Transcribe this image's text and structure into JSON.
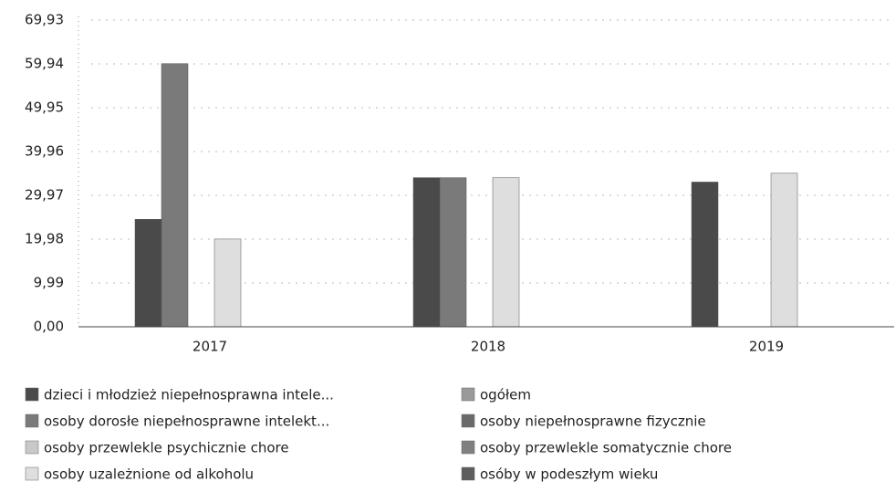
{
  "chart_data": {
    "type": "bar",
    "categories": [
      "2017",
      "2018",
      "2019"
    ],
    "series": [
      {
        "name": "dzieci i młodzież niepełnosprawna intele...",
        "color": "#4a4a4a",
        "values": [
          24.5,
          34,
          33
        ]
      },
      {
        "name": "osoby dorosłe niepełnosprawne intelekt...",
        "color": "#7a7a7a",
        "values": [
          60,
          34,
          null
        ]
      },
      {
        "name": "osoby przewlekle psychicznie chore",
        "color": "#c8c8c8",
        "values": [
          null,
          null,
          null
        ]
      },
      {
        "name": "osoby uzależnione od alkoholu",
        "color": "#dedede",
        "values": [
          20,
          34,
          35
        ]
      },
      {
        "name": "ogółem",
        "color": "#9a9a9a",
        "values": [
          null,
          null,
          null
        ]
      },
      {
        "name": "osoby niepełnosprawne fizycznie",
        "color": "#6a6a6a",
        "values": [
          null,
          null,
          null
        ]
      },
      {
        "name": "osoby przewlekle somatycznie chore",
        "color": "#808080",
        "values": [
          null,
          null,
          null
        ]
      },
      {
        "name": "osóby w podeszłym wieku",
        "color": "#5e5e5e",
        "values": [
          null,
          null,
          null
        ]
      }
    ],
    "ylim": [
      0,
      69.93
    ],
    "yticks": [
      {
        "value": 0,
        "label": "0,00"
      },
      {
        "value": 9.99,
        "label": "9,99"
      },
      {
        "value": 19.98,
        "label": "19,98"
      },
      {
        "value": 29.97,
        "label": "29,97"
      },
      {
        "value": 39.96,
        "label": "39,96"
      },
      {
        "value": 49.95,
        "label": "49,95"
      },
      {
        "value": 59.94,
        "label": "59,94"
      },
      {
        "value": 69.93,
        "label": "69,93"
      }
    ],
    "grid": true
  }
}
